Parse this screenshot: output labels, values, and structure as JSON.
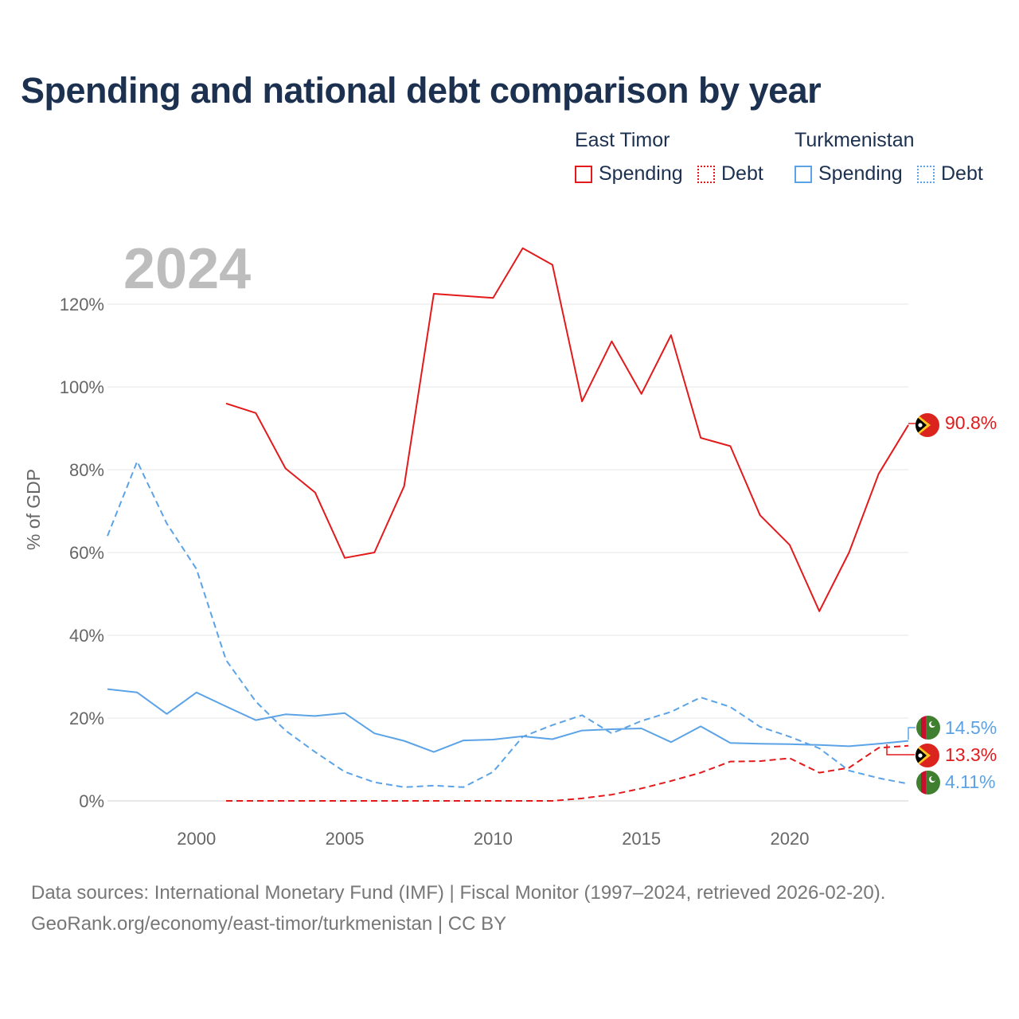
{
  "title": "Spending and national debt comparison by year",
  "legend": {
    "groups": [
      {
        "name": "East Timor",
        "color": "#e31a1c",
        "items": [
          {
            "label": "Spending",
            "style": "solid"
          },
          {
            "label": "Debt",
            "style": "dotted"
          }
        ]
      },
      {
        "name": "Turkmenistan",
        "color": "#5ba3e6",
        "items": [
          {
            "label": "Spending",
            "style": "solid"
          },
          {
            "label": "Debt",
            "style": "dotted"
          }
        ]
      }
    ]
  },
  "footer": {
    "line1": "Data sources: International Monetary Fund (IMF) | Fiscal Monitor (1997–2024, retrieved 2026-02-20).",
    "line2": "GeoRank.org/economy/east-timor/turkmenistan | CC BY"
  },
  "chart_data": {
    "type": "line",
    "title": "Spending and national debt comparison by year",
    "year_watermark": "2024",
    "ylabel": "% of GDP",
    "xlabel": "",
    "xlim": [
      1997,
      2024
    ],
    "ylim": [
      0,
      130
    ],
    "x_ticks": [
      2000,
      2005,
      2010,
      2015,
      2020
    ],
    "y_ticks": [
      0,
      20,
      40,
      60,
      80,
      100,
      120
    ],
    "y_tick_labels": [
      "0%",
      "20%",
      "40%",
      "60%",
      "80%",
      "100%",
      "120%"
    ],
    "grid": true,
    "legend_position": "top-right",
    "series": [
      {
        "name": "East Timor Spending",
        "country": "East Timor",
        "measure": "Spending",
        "color": "#e31a1c",
        "dash": "solid",
        "end_label": "90.8%",
        "end_icon": "east-timor-flag-icon",
        "x": [
          2001,
          2002,
          2003,
          2004,
          2005,
          2006,
          2007,
          2008,
          2009,
          2010,
          2011,
          2012,
          2013,
          2014,
          2015,
          2016,
          2017,
          2018,
          2019,
          2020,
          2021,
          2022,
          2023,
          2024
        ],
        "values": [
          96,
          93.7,
          80.3,
          74.5,
          58.7,
          60,
          76,
          122.5,
          122,
          121.5,
          133.5,
          129.5,
          96.5,
          111,
          98.3,
          112.5,
          87.7,
          85.7,
          69,
          61.8,
          45.8,
          60,
          79,
          90.8
        ]
      },
      {
        "name": "East Timor Debt",
        "country": "East Timor",
        "measure": "Debt",
        "color": "#e31a1c",
        "dash": "dashed",
        "end_label": "13.3%",
        "end_icon": "east-timor-flag-icon",
        "x": [
          2001,
          2002,
          2003,
          2004,
          2005,
          2006,
          2007,
          2008,
          2009,
          2010,
          2011,
          2012,
          2013,
          2014,
          2015,
          2016,
          2017,
          2018,
          2019,
          2020,
          2021,
          2022,
          2023,
          2024
        ],
        "values": [
          0,
          0,
          0,
          0,
          0,
          0,
          0,
          0,
          0,
          0,
          0,
          0,
          0.6,
          1.5,
          3,
          4.8,
          6.8,
          9.5,
          9.6,
          10.3,
          6.8,
          8,
          12.8,
          13.3
        ]
      },
      {
        "name": "Turkmenistan Spending",
        "country": "Turkmenistan",
        "measure": "Spending",
        "color": "#5ba3e6",
        "dash": "solid",
        "end_label": "14.5%",
        "end_icon": "turkmenistan-flag-icon",
        "x": [
          1997,
          1998,
          1999,
          2000,
          2001,
          2002,
          2003,
          2004,
          2005,
          2006,
          2007,
          2008,
          2009,
          2010,
          2011,
          2012,
          2013,
          2014,
          2015,
          2016,
          2017,
          2018,
          2019,
          2020,
          2021,
          2022,
          2023,
          2024
        ],
        "values": [
          27,
          26.2,
          21,
          26.2,
          22.8,
          19.5,
          20.9,
          20.5,
          21.2,
          16.3,
          14.5,
          11.8,
          14.6,
          14.8,
          15.6,
          14.9,
          17,
          17.3,
          17.5,
          14.2,
          18,
          14,
          13.8,
          13.7,
          13.5,
          13.2,
          13.8,
          14.5
        ]
      },
      {
        "name": "Turkmenistan Debt",
        "country": "Turkmenistan",
        "measure": "Debt",
        "color": "#5ba3e6",
        "dash": "dashed",
        "end_label": "4.11%",
        "end_icon": "turkmenistan-flag-icon",
        "x": [
          1997,
          1998,
          1999,
          2000,
          2001,
          2002,
          2003,
          2004,
          2005,
          2006,
          2007,
          2008,
          2009,
          2010,
          2011,
          2012,
          2013,
          2014,
          2015,
          2016,
          2017,
          2018,
          2019,
          2020,
          2021,
          2022,
          2023,
          2024
        ],
        "values": [
          64,
          82,
          67,
          56,
          34,
          24,
          17,
          11.8,
          7,
          4.5,
          3.3,
          3.7,
          3.3,
          7,
          15.5,
          18.3,
          20.7,
          16.3,
          19.3,
          21.5,
          25,
          22.7,
          17.9,
          15.5,
          12.7,
          7.3,
          5.5,
          4.11
        ]
      }
    ]
  }
}
